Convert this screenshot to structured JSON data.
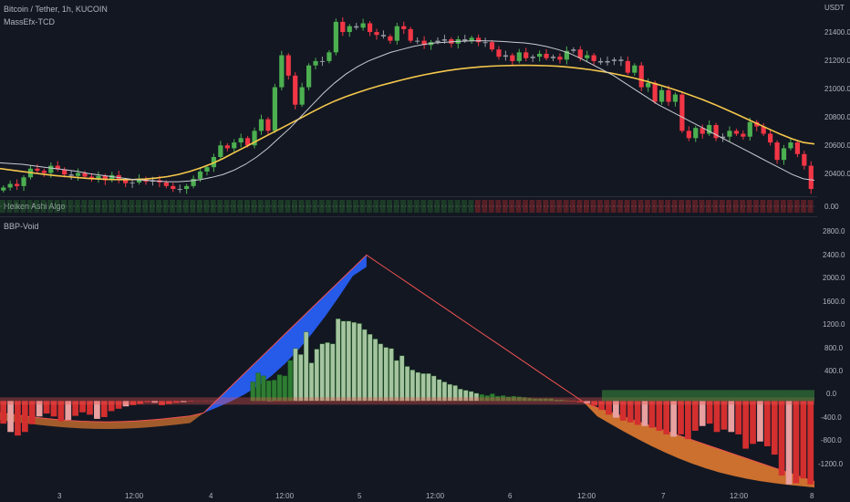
{
  "header": {
    "symbol_line": "Bitcoin / Tether, 1h, KUCOIN",
    "indicator1": "MassEfx-TCD",
    "indicator2": "Heiken Ashi Algo",
    "indicator3": "BBP-Void",
    "currency": "USDT"
  },
  "price_axis": [
    "21400.0",
    "21200.0",
    "21000.0",
    "20800.0",
    "20600.0",
    "20400.0"
  ],
  "mid_axis": [
    "0.00"
  ],
  "osc_axis": [
    "2800.0",
    "2400.0",
    "2000.0",
    "1600.0",
    "1200.0",
    "800.0",
    "400.0",
    "0.0",
    "-400.0",
    "-800.0",
    "-1200.0"
  ],
  "time_axis": [
    "3",
    "12:00",
    "4",
    "12:00",
    "5",
    "12:00",
    "6",
    "12:00",
    "7",
    "12:00",
    "8"
  ],
  "colors": {
    "background": "#131722",
    "bull_candle": "#4caf50",
    "bear_candle": "#f23645",
    "neutral_candle": "#9598a1",
    "ma_slow": "#f5c84b",
    "ma_fast": "#c9cbd1",
    "osc_bull": "#2e7d32",
    "osc_bull_light": "#a5c4a0",
    "osc_bear": "#d32f2f",
    "osc_bear_light": "#e8a0a0",
    "cloud_blue": "#2962ff",
    "cloud_orange": "#e07a30"
  },
  "chart_data": [
    {
      "type": "candlestick",
      "title": "Bitcoin / Tether, 1h, KUCOIN",
      "ylim": [
        20250,
        21550
      ],
      "y_ticks": [
        20400,
        20600,
        20800,
        21000,
        21200,
        21400
      ],
      "closes": [
        20310,
        20335,
        20320,
        20380,
        20440,
        20425,
        20410,
        20460,
        20435,
        20400,
        20390,
        20410,
        20385,
        20370,
        20390,
        20360,
        20395,
        20360,
        20340,
        20345,
        20370,
        20350,
        20360,
        20345,
        20320,
        20300,
        20300,
        20320,
        20370,
        20420,
        20450,
        20520,
        20600,
        20580,
        20620,
        20650,
        20600,
        20700,
        20780,
        20700,
        21000,
        21220,
        21080,
        20880,
        21000,
        21150,
        21180,
        21180,
        21240,
        21450,
        21380,
        21420,
        21410,
        21440,
        21380,
        21360,
        21350,
        21320,
        21420,
        21400,
        21320,
        21320,
        21290,
        21310,
        21320,
        21330,
        21300,
        21330,
        21320,
        21340,
        21310,
        21310,
        21260,
        21210,
        21220,
        21180,
        21240,
        21200,
        21210,
        21230,
        21200,
        21210,
        21190,
        21250,
        21260,
        21200,
        21220,
        21180,
        21170,
        21180,
        21190,
        21180,
        21100,
        21150,
        21000,
        21030,
        20900,
        20980,
        20900,
        20950,
        20700,
        20650,
        20720,
        20680,
        20740,
        20650,
        20660,
        20700,
        20680,
        20660,
        20760,
        20730,
        20680,
        20620,
        20500,
        20580,
        20620,
        20540,
        20460,
        20300
      ],
      "ma_fast": [
        20480,
        20475,
        20470,
        20460,
        20450,
        20440,
        20430,
        20420,
        20405,
        20395,
        20385,
        20375,
        20365,
        20360,
        20355,
        20350,
        20350,
        20355,
        20365,
        20380,
        20400,
        20430,
        20470,
        20520,
        20580,
        20650,
        20720,
        20800,
        20880,
        20960,
        21030,
        21090,
        21140,
        21180,
        21210,
        21240,
        21260,
        21280,
        21295,
        21305,
        21310,
        21315,
        21318,
        21320,
        21318,
        21315,
        21310,
        21305,
        21295,
        21280,
        21260,
        21235,
        21200,
        21160,
        21120,
        21080,
        21030,
        20980,
        20930,
        20880,
        20840,
        20800,
        20760,
        20720,
        20680,
        20640,
        20600,
        20560,
        20520,
        20480,
        20440,
        20400,
        20370,
        20360
      ],
      "ma_slow": [
        20440,
        20430,
        20420,
        20410,
        20400,
        20392,
        20385,
        20378,
        20372,
        20368,
        20365,
        20364,
        20365,
        20368,
        20375,
        20385,
        20400,
        20420,
        20445,
        20475,
        20510,
        20550,
        20590,
        20630,
        20670,
        20710,
        20750,
        20790,
        20830,
        20870,
        20905,
        20935,
        20962,
        20987,
        21010,
        21030,
        21050,
        21068,
        21085,
        21100,
        21113,
        21124,
        21133,
        21140,
        21145,
        21148,
        21150,
        21151,
        21150,
        21148,
        21144,
        21138,
        21130,
        21120,
        21108,
        21094,
        21078,
        21060,
        21040,
        21018,
        20995,
        20970,
        20943,
        20914,
        20883,
        20850,
        20815,
        20780,
        20745,
        20710,
        20675,
        20645,
        20620,
        20610
      ]
    },
    {
      "type": "bar",
      "title": "BBP-Void",
      "ylim": [
        -1450,
        2900
      ],
      "y_ticks": [
        -1200,
        -800,
        -400,
        0,
        400,
        800,
        1200,
        1600,
        2000,
        2400,
        2800
      ],
      "values": [
        -380,
        -520,
        -580,
        -520,
        -390,
        -260,
        -210,
        -260,
        -340,
        -320,
        -250,
        -190,
        -230,
        -300,
        -270,
        -170,
        -130,
        -90,
        -70,
        -50,
        -20,
        -30,
        -70,
        -50,
        -30,
        -20,
        -10,
        -5,
        -5,
        -3,
        -2,
        -1,
        0,
        0,
        0,
        -2,
        -3,
        -5,
        -6,
        -5,
        -4,
        -3,
        -2,
        -2,
        -2,
        -2,
        -2,
        -2,
        -3,
        -2,
        -2,
        -2,
        -3,
        -3,
        -3,
        -4,
        -4,
        -3,
        -3,
        -3,
        -2,
        -2,
        -2,
        -1,
        -1,
        -1,
        -1,
        -1,
        -1,
        -1,
        0,
        0,
        0,
        0,
        0,
        0,
        -1,
        -3,
        -5,
        -10,
        -20,
        -40,
        -80,
        -150,
        -230,
        -280,
        -330,
        -360,
        -400,
        -420,
        -450,
        -500,
        -560,
        -600,
        -560,
        -640,
        -500,
        -420,
        -380,
        -520,
        -480,
        -520,
        -560,
        -800,
        -720,
        -680,
        -760,
        -900,
        -1250,
        -1400,
        -1380,
        -1300,
        -1400
      ],
      "pos_values": [
        0,
        0,
        0,
        0,
        0,
        0,
        0,
        0,
        0,
        0,
        0,
        0,
        0,
        0,
        0,
        0,
        0,
        0,
        0,
        0,
        0,
        0,
        0,
        0,
        0,
        0,
        0,
        0,
        0,
        0,
        0,
        0,
        0,
        0,
        0,
        0,
        0,
        0,
        0,
        0,
        0,
        0,
        0,
        0,
        0,
        0,
        0,
        320,
        470,
        420,
        340,
        350,
        440,
        420,
        680,
        880,
        780,
        1160,
        640,
        870,
        960,
        980,
        960,
        1380,
        1340,
        1340,
        1320,
        1300,
        1200,
        1120,
        1040,
        960,
        900,
        880,
        680,
        760,
        580,
        520,
        480,
        460,
        460,
        420,
        360,
        320,
        280,
        260,
        200,
        180,
        160,
        130,
        110,
        90,
        120,
        80,
        90,
        70,
        80,
        70,
        60,
        50,
        40,
        40,
        40,
        40,
        20,
        20,
        10,
        0,
        0,
        0,
        0,
        0,
        0,
        0,
        0,
        0,
        0,
        0,
        0,
        0,
        0,
        0,
        0,
        0,
        0,
        0,
        0,
        0,
        0,
        0,
        0,
        0,
        0,
        0,
        0,
        0,
        0,
        0,
        0,
        0,
        0,
        0,
        0,
        0,
        0,
        0,
        0,
        0,
        0,
        0,
        0,
        0,
        0
      ],
      "x_labels": [
        "3",
        "12:00",
        "4",
        "12:00",
        "5",
        "12:00",
        "6",
        "12:00",
        "7",
        "12:00",
        "8"
      ]
    }
  ]
}
